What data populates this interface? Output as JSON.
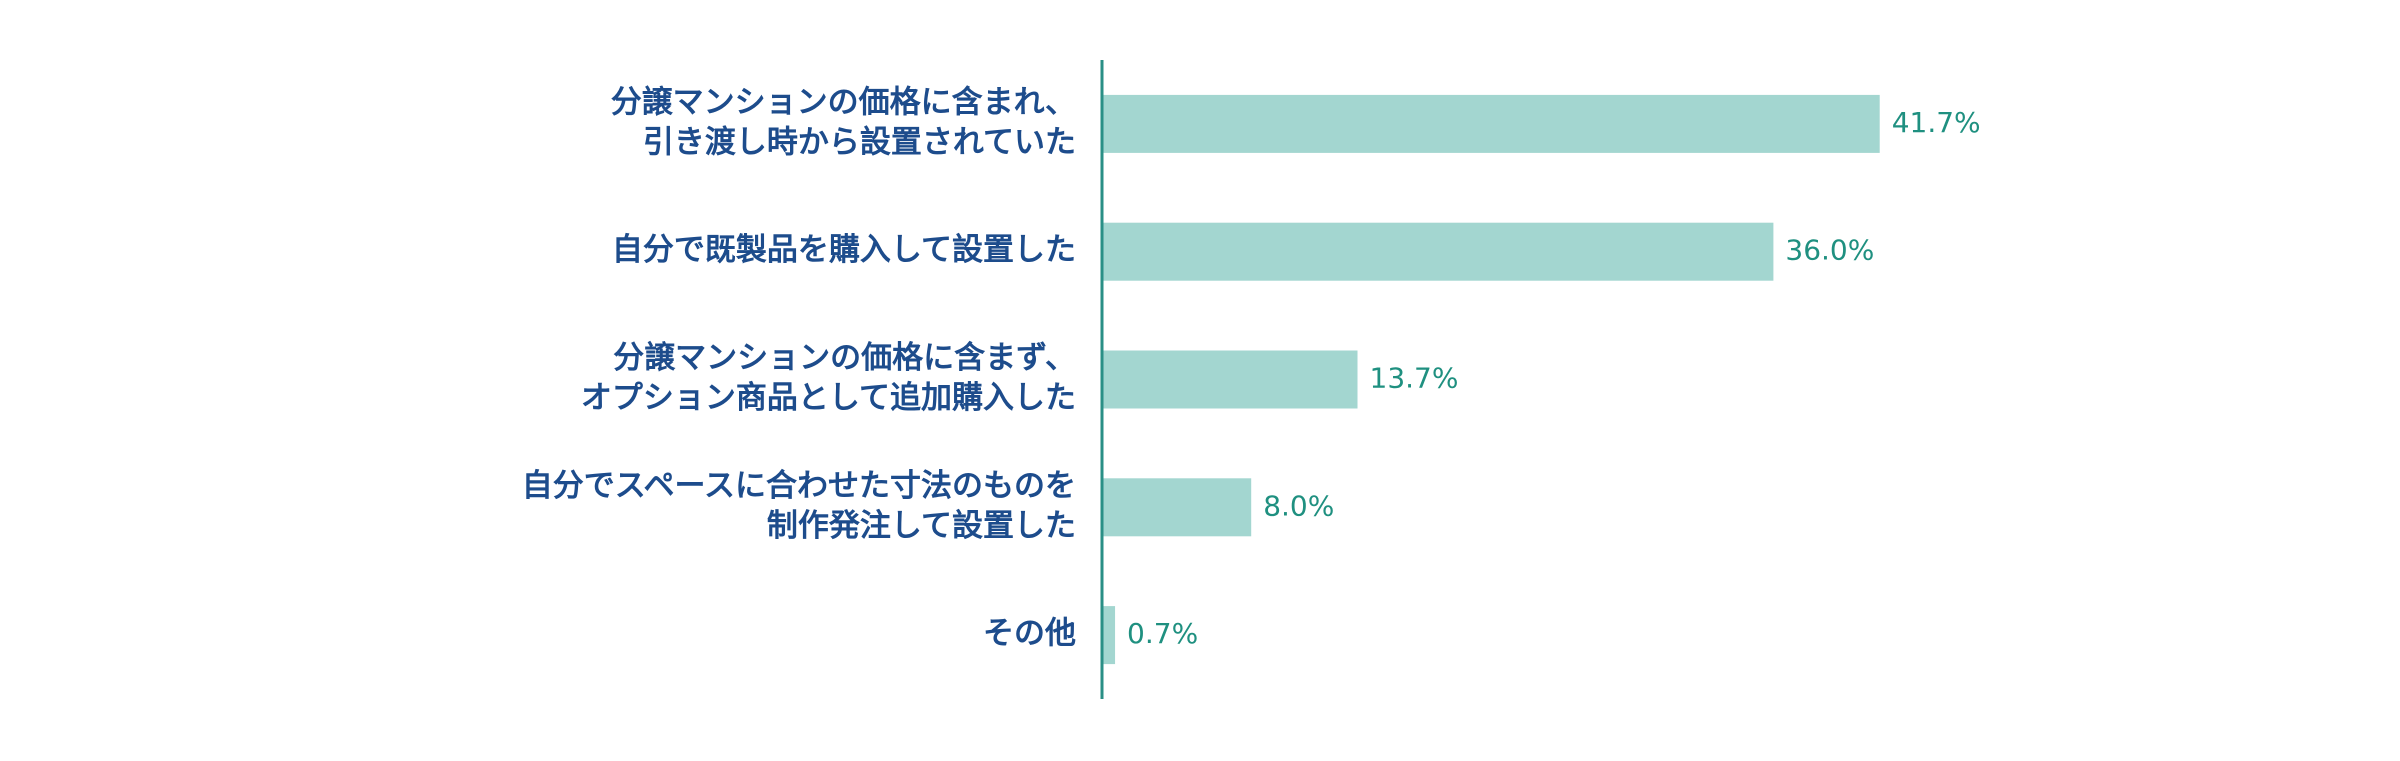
{
  "chart_data": {
    "type": "bar",
    "orientation": "horizontal",
    "categories": [
      [
        "分譲マンションの価格に含まれ、",
        "引き渡し時から設置されていた"
      ],
      [
        "自分で既製品を購入して設置した"
      ],
      [
        "分譲マンションの価格に含まず、",
        "オプション商品として追加購入した"
      ],
      [
        "自分でスペースに合わせた寸法のものを",
        "制作発注して設置した"
      ],
      [
        "その他"
      ]
    ],
    "values": [
      41.7,
      36.0,
      13.7,
      8.0,
      0.7
    ],
    "value_labels": [
      "41.7%",
      "36.0%",
      "13.7%",
      "8.0%",
      "0.7%"
    ],
    "color": "#a3d6d0"
  }
}
